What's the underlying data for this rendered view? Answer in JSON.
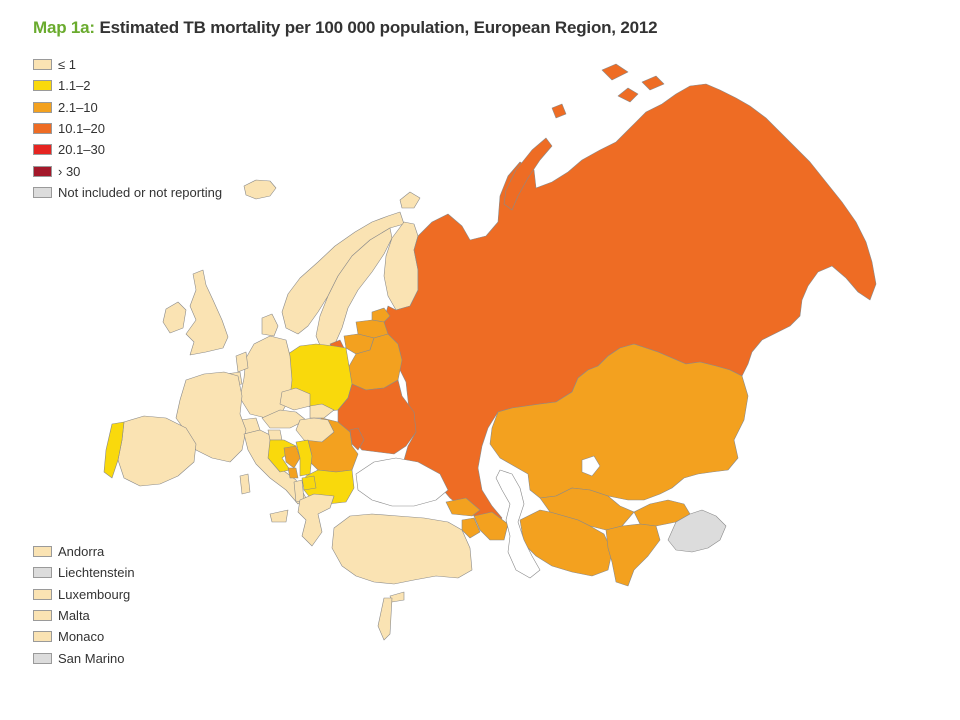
{
  "title": {
    "prefix": "Map 1a:",
    "text": "Estimated TB mortality per 100 000 population, European Region, 2012"
  },
  "colors": {
    "le1": "#fae3b3",
    "c1_2": "#f9d90c",
    "c2_10": "#f3a11f",
    "c10_20": "#ee6c24",
    "c20_30": "#e52421",
    "gt30": "#a3182a",
    "not_reporting": "#dcdcdc",
    "water": "#ffffff",
    "border": "#8a8a8a"
  },
  "legend": {
    "classes": [
      {
        "label": "≤ 1",
        "color": "#fae3b3"
      },
      {
        "label": "1.1–2",
        "color": "#f9d90c"
      },
      {
        "label": "2.1–10",
        "color": "#f3a11f"
      },
      {
        "label": "10.1–20",
        "color": "#ee6c24"
      },
      {
        "label": "20.1–30",
        "color": "#e52421"
      },
      {
        "label": "› 30",
        "color": "#a3182a"
      },
      {
        "label": "Not included or not reporting",
        "color": "#dcdcdc"
      }
    ],
    "small_countries": [
      {
        "label": "Andorra",
        "color": "#fae3b3"
      },
      {
        "label": "Liechtenstein",
        "color": "#dcdcdc"
      },
      {
        "label": "Luxembourg",
        "color": "#fae3b3"
      },
      {
        "label": "Malta",
        "color": "#fae3b3"
      },
      {
        "label": "Monaco",
        "color": "#fae3b3"
      },
      {
        "label": "San Marino",
        "color": "#dcdcdc"
      }
    ]
  }
}
